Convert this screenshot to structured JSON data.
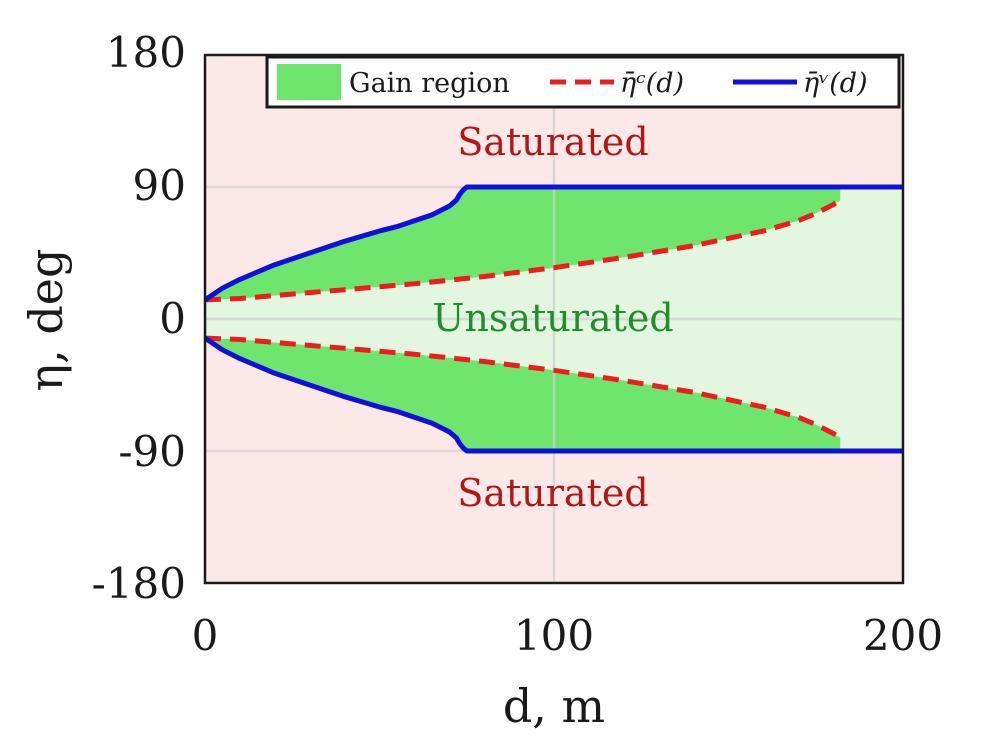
{
  "chart_data": {
    "type": "area",
    "xlabel": "d, m",
    "ylabel": "η, deg",
    "xlim": [
      0,
      200
    ],
    "ylim": [
      -180,
      180
    ],
    "xticks": [
      "0",
      "100",
      "200"
    ],
    "yticks": [
      "180",
      "90",
      "0",
      "-90",
      "-180"
    ],
    "grid": true,
    "legend_position": "top",
    "legend": [
      {
        "label": "Gain region",
        "kind": "fill",
        "color": "#6ee66e"
      },
      {
        "label": "η̄ᶜ(d)",
        "kind": "dashed",
        "color": "#ee1c1c"
      },
      {
        "label": "η̄ᵛ(d)",
        "kind": "solid",
        "color": "#1010dd"
      }
    ],
    "region_labels": {
      "saturated_top": "Saturated",
      "unsaturated": "Unsaturated",
      "saturated_bottom": "Saturated"
    },
    "colors": {
      "saturated_bg": "#fde8e8",
      "unsaturated_bg": "#e2f6e0",
      "gain": "#6ee66e",
      "eta_c": "#ee1c1c",
      "eta_v": "#1010dd",
      "saturated_text": "#b01818",
      "unsaturated_text": "#1f8f2a",
      "grid": "#cfcfcf"
    },
    "series": [
      {
        "name": "eta_v",
        "x": [
          0,
          5,
          10,
          20,
          30,
          40,
          50,
          55,
          60,
          65,
          70,
          72,
          73,
          74,
          75,
          200
        ],
        "y": [
          13,
          21,
          27,
          37,
          45,
          53,
          60,
          63,
          67,
          71,
          77,
          81,
          85,
          88,
          90,
          90
        ]
      },
      {
        "name": "eta_c",
        "x": [
          0,
          10,
          20,
          40,
          60,
          80,
          100,
          120,
          140,
          160,
          170,
          175,
          180,
          182
        ],
        "y": [
          13,
          14,
          16,
          20,
          24,
          29,
          35,
          42,
          50,
          60,
          67,
          72,
          78,
          81
        ]
      }
    ],
    "symmetric": true
  }
}
